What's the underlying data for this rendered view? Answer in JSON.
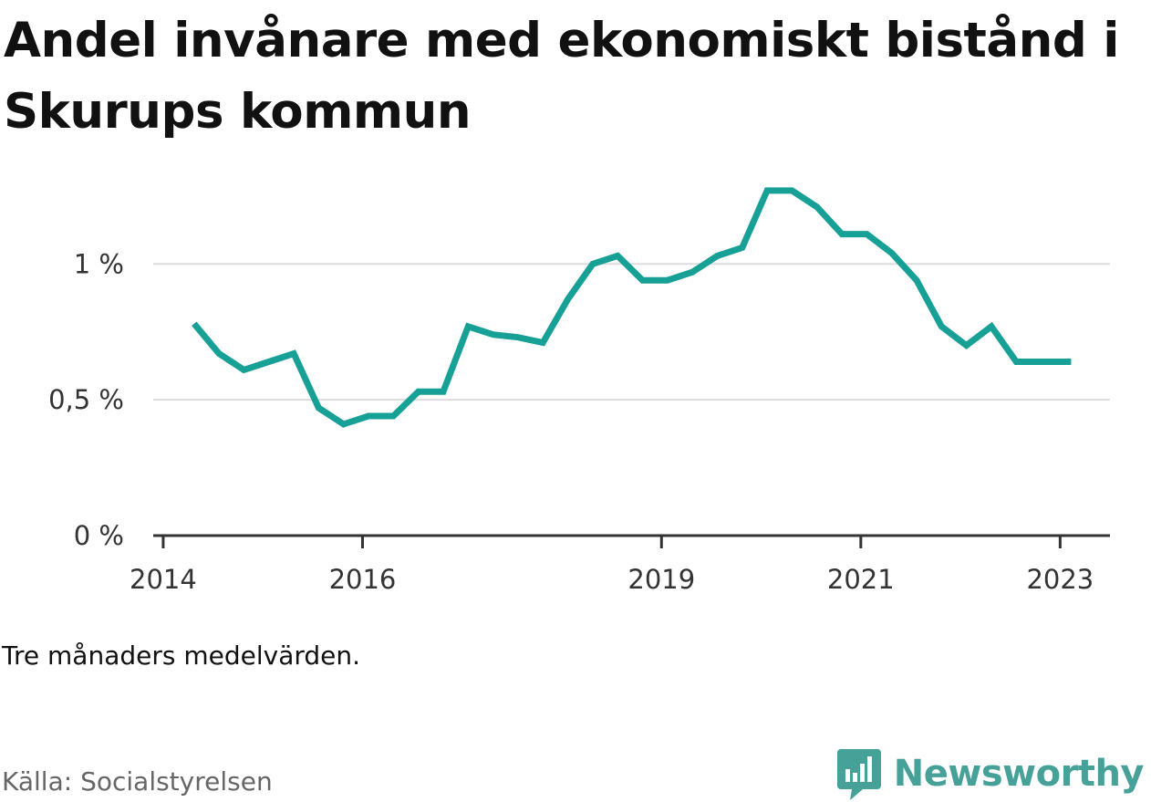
{
  "title": "Andel invånare med ekonomiskt bistånd i Skurups kommun",
  "note": "Tre månaders medelvärden.",
  "source": "Källa: Socialstyrelsen",
  "brand": {
    "name": "Newsworthy",
    "logo_icon": "bar-chart-speech-bubble-icon"
  },
  "colors": {
    "line": "#16a096",
    "brand": "#46a198",
    "grid": "#dddddd",
    "axis": "#333333"
  },
  "chart_data": {
    "type": "line",
    "title": "Andel invånare med ekonomiskt bistånd i Skurups kommun",
    "xlabel": "",
    "ylabel": "",
    "ylim": [
      0,
      1.3
    ],
    "grid": true,
    "yticks": [
      {
        "value": 0,
        "label": "0 %"
      },
      {
        "value": 0.5,
        "label": "0,5 %"
      },
      {
        "value": 1,
        "label": "1 %"
      }
    ],
    "xticks": [
      {
        "value": 2014,
        "label": "2014"
      },
      {
        "value": 2016,
        "label": "2016"
      },
      {
        "value": 2019,
        "label": "2019"
      },
      {
        "value": 2021,
        "label": "2021"
      },
      {
        "value": 2023,
        "label": "2023"
      }
    ],
    "xlim": [
      2013.9,
      2023.5
    ],
    "series": [
      {
        "x": [
          2014.31,
          2014.56,
          2014.81,
          2015.06,
          2015.31,
          2015.56,
          2015.81,
          2016.06,
          2016.31,
          2016.56,
          2016.81,
          2017.06,
          2017.31,
          2017.56,
          2017.81,
          2018.06,
          2018.31,
          2018.56,
          2018.81,
          2019.06,
          2019.31,
          2019.56,
          2019.81,
          2020.06,
          2020.31,
          2020.56,
          2020.81,
          2021.06,
          2021.31,
          2021.56,
          2021.81,
          2022.06,
          2022.31,
          2022.56,
          2022.81,
          2023.06,
          2023.11
        ],
        "values": [
          0.78,
          0.67,
          0.61,
          0.64,
          0.67,
          0.47,
          0.41,
          0.44,
          0.44,
          0.53,
          0.53,
          0.77,
          0.74,
          0.73,
          0.71,
          0.87,
          1.0,
          1.03,
          0.94,
          0.94,
          0.97,
          1.03,
          1.06,
          1.27,
          1.27,
          1.21,
          1.11,
          1.11,
          1.04,
          0.94,
          0.77,
          0.7,
          0.77,
          0.64,
          0.64,
          0.64,
          0.64
        ]
      }
    ]
  }
}
